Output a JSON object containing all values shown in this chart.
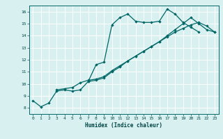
{
  "title": "",
  "xlabel": "Humidex (Indice chaleur)",
  "ylabel": "",
  "bg_color": "#d8f0f0",
  "grid_color": "#ffffff",
  "line_color": "#006666",
  "xlim": [
    -0.5,
    23.5
  ],
  "ylim": [
    7.5,
    16.5
  ],
  "xticks": [
    0,
    1,
    2,
    3,
    4,
    5,
    6,
    7,
    8,
    9,
    10,
    11,
    12,
    13,
    14,
    15,
    16,
    17,
    18,
    19,
    20,
    21,
    22,
    23
  ],
  "yticks": [
    8,
    9,
    10,
    11,
    12,
    13,
    14,
    15,
    16
  ],
  "line1_x": [
    0,
    1,
    2,
    3,
    4,
    5,
    6,
    7,
    8,
    9,
    10,
    11,
    12,
    13,
    14,
    15,
    16,
    17,
    18,
    19,
    20,
    21
  ],
  "line1_y": [
    8.6,
    8.1,
    8.4,
    9.4,
    9.5,
    9.4,
    9.5,
    10.2,
    11.6,
    11.8,
    14.9,
    15.5,
    15.8,
    15.2,
    15.1,
    15.1,
    15.2,
    16.2,
    15.8,
    15.1,
    14.7,
    14.3
  ],
  "line2_x": [
    3,
    4,
    5,
    6,
    7,
    8,
    9,
    10,
    11,
    12,
    13,
    14,
    15,
    16,
    17,
    18,
    19,
    20,
    21,
    22,
    23
  ],
  "line2_y": [
    9.5,
    9.6,
    9.7,
    10.1,
    10.3,
    10.4,
    10.6,
    11.1,
    11.5,
    11.9,
    12.3,
    12.7,
    13.1,
    13.5,
    13.9,
    14.3,
    14.6,
    14.9,
    15.1,
    14.8,
    14.3
  ],
  "line3_x": [
    7,
    8,
    9,
    10,
    11,
    12,
    13,
    14,
    15,
    16,
    17,
    18,
    19,
    20,
    21,
    22,
    23
  ],
  "line3_y": [
    10.2,
    10.3,
    10.5,
    11.0,
    11.4,
    11.9,
    12.3,
    12.7,
    13.1,
    13.5,
    14.0,
    14.5,
    15.0,
    15.5,
    15.0,
    14.5,
    14.3
  ]
}
